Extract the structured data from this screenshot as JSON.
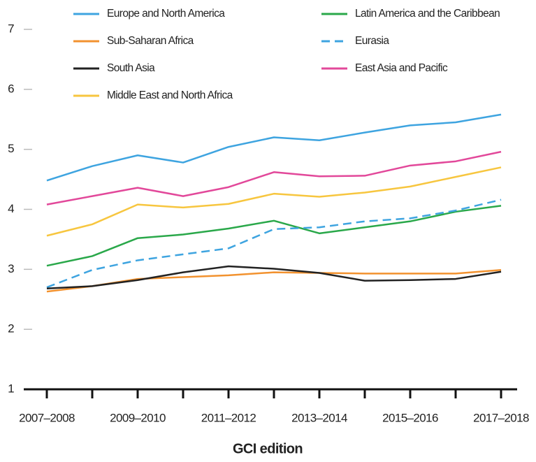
{
  "chart_data": {
    "type": "line",
    "x_label": "GCI edition",
    "categories": [
      "2007–2008",
      null,
      "2009–2010",
      null,
      "2011–2012",
      null,
      "2013–2014",
      null,
      "2015–2016",
      null,
      "2017–2018"
    ],
    "ylim": [
      1,
      7
    ],
    "yticks": [
      1,
      2,
      3,
      4,
      5,
      6,
      7
    ],
    "grid": false,
    "legend": "top",
    "series": [
      {
        "name": "Europe and North America",
        "color": "#3ea4e0",
        "dashed": false,
        "values": [
          4.48,
          4.72,
          4.9,
          4.78,
          5.04,
          5.2,
          5.15,
          5.28,
          5.4,
          5.45,
          5.58
        ]
      },
      {
        "name": "Latin America and the Caribbean",
        "color": "#2aa84a",
        "dashed": false,
        "values": [
          3.06,
          3.22,
          3.52,
          3.58,
          3.68,
          3.81,
          3.6,
          3.7,
          3.8,
          3.96,
          4.06
        ]
      },
      {
        "name": "Sub-Saharan Africa",
        "color": "#f2922f",
        "dashed": false,
        "values": [
          2.63,
          2.72,
          2.84,
          2.87,
          2.9,
          2.95,
          2.94,
          2.93,
          2.93,
          2.93,
          2.99
        ]
      },
      {
        "name": "Eurasia",
        "color": "#3ea4e0",
        "dashed": true,
        "values": [
          2.7,
          2.99,
          3.15,
          3.25,
          3.35,
          3.67,
          3.7,
          3.8,
          3.85,
          3.98,
          4.16
        ]
      },
      {
        "name": "South Asia",
        "color": "#222222",
        "dashed": false,
        "values": [
          2.68,
          2.72,
          2.82,
          2.95,
          3.05,
          3.01,
          2.94,
          2.81,
          2.82,
          2.84,
          2.96
        ]
      },
      {
        "name": "East Asia and Pacific",
        "color": "#e2489a",
        "dashed": false,
        "values": [
          4.08,
          4.22,
          4.36,
          4.22,
          4.37,
          4.62,
          4.55,
          4.56,
          4.73,
          4.8,
          4.96
        ]
      },
      {
        "name": "Middle East and North Africa",
        "color": "#f7c63f",
        "dashed": false,
        "values": [
          3.56,
          3.75,
          4.08,
          4.03,
          4.09,
          4.26,
          4.21,
          4.28,
          4.38,
          4.54,
          4.7
        ]
      }
    ]
  }
}
